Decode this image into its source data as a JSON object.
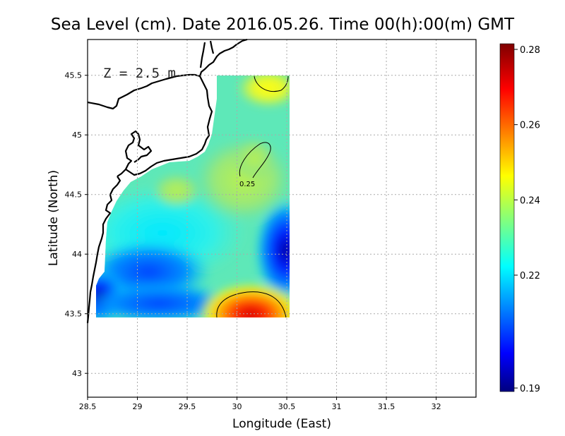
{
  "title": "Sea Level (cm). Date 2016.05.26. Time 00(h):00(m) GMT",
  "depth_label": "Z = 2.5 m",
  "axes": {
    "xlabel": "Longitude (East)",
    "ylabel": "Latitude (North)",
    "x_range": [
      28.5,
      32.4
    ],
    "y_range": [
      42.8,
      45.8
    ],
    "x_ticks": [
      "28.5",
      "29",
      "29.5",
      "30",
      "30.5",
      "31",
      "31.5",
      "32"
    ],
    "y_ticks": [
      "43",
      "43.5",
      "44",
      "44.5",
      "45",
      "45.5"
    ],
    "grid": true
  },
  "colorbar": {
    "min": 0.19,
    "max": 0.28,
    "ticks": [
      "0.19",
      "0.22",
      "0.24",
      "0.26",
      "0.28"
    ],
    "colormap": "jet"
  },
  "contour_label": "0.25",
  "colors": {
    "low": "#00007f",
    "high": "#7f0000",
    "coastline": "#000000",
    "grid": "#aaaaaa"
  }
}
